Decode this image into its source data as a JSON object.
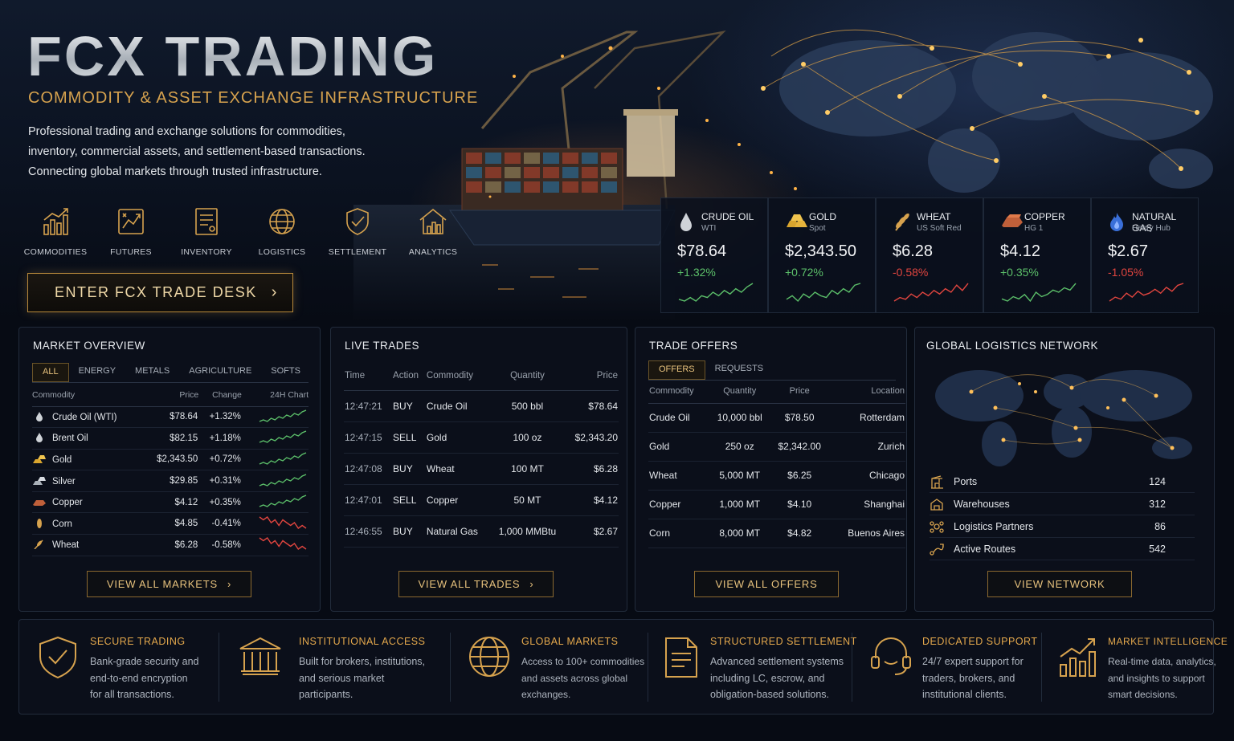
{
  "brand": {
    "title": "FCX TRADING",
    "subtitle": "COMMODITY & ASSET EXCHANGE INFRASTRUCTURE",
    "description": [
      "Professional trading and exchange solutions for commodities,",
      "inventory, commercial assets, and settlement-based transactions.",
      "Connecting global markets through trusted infrastructure."
    ]
  },
  "nav": [
    {
      "label": "COMMODITIES",
      "icon": "bar-chart-icon"
    },
    {
      "label": "FUTURES",
      "icon": "futures-chart-icon"
    },
    {
      "label": "INVENTORY",
      "icon": "document-icon"
    },
    {
      "label": "LOGISTICS",
      "icon": "globe-icon"
    },
    {
      "label": "SETTLEMENT",
      "icon": "shield-check-icon"
    },
    {
      "label": "ANALYTICS",
      "icon": "house-chart-icon"
    }
  ],
  "cta": {
    "label": "ENTER FCX TRADE DESK"
  },
  "tickers": [
    {
      "name": "CRUDE OIL",
      "sub": "WTI",
      "price": "$78.64",
      "change": "+1.32%",
      "direction": "up",
      "icon": "oil-drop-icon",
      "spark": [
        4,
        3,
        5,
        3,
        6,
        5,
        8,
        6,
        9,
        7,
        10,
        8,
        11,
        13
      ]
    },
    {
      "name": "GOLD",
      "sub": "Spot",
      "price": "$2,343.50",
      "change": "+0.72%",
      "direction": "up",
      "icon": "gold-bars-icon",
      "spark": [
        4,
        6,
        3,
        7,
        5,
        8,
        6,
        5,
        9,
        7,
        10,
        8,
        12,
        13
      ]
    },
    {
      "name": "WHEAT",
      "sub": "US Soft Red",
      "price": "$6.28",
      "change": "-0.58%",
      "direction": "down",
      "icon": "wheat-icon",
      "spark": [
        3,
        5,
        4,
        7,
        5,
        8,
        6,
        9,
        7,
        10,
        8,
        12,
        9,
        13
      ]
    },
    {
      "name": "COPPER",
      "sub": "HG 1",
      "price": "$4.12",
      "change": "+0.35%",
      "direction": "up",
      "icon": "copper-ingot-icon",
      "spark": [
        5,
        4,
        6,
        5,
        7,
        4,
        8,
        6,
        7,
        9,
        8,
        10,
        9,
        12
      ]
    },
    {
      "name": "NATURAL GAS",
      "sub": "Henry Hub",
      "price": "$2.67",
      "change": "-1.05%",
      "direction": "down",
      "icon": "flame-icon",
      "spark": [
        4,
        6,
        5,
        8,
        6,
        9,
        7,
        8,
        10,
        8,
        11,
        9,
        12,
        13
      ]
    }
  ],
  "market_overview": {
    "title": "MARKET OVERVIEW",
    "tabs": [
      "ALL",
      "ENERGY",
      "METALS",
      "AGRICULTURE",
      "SOFTS"
    ],
    "active_tab": "ALL",
    "headers": [
      "Commodity",
      "Price",
      "Change",
      "24H Chart"
    ],
    "rows": [
      {
        "name": "Crude Oil (WTI)",
        "price": "$78.64",
        "change": "+1.32%",
        "direction": "up",
        "icon": "oil-drop-icon"
      },
      {
        "name": "Brent Oil",
        "price": "$82.15",
        "change": "+1.18%",
        "direction": "up",
        "icon": "oil-drop-icon"
      },
      {
        "name": "Gold",
        "price": "$2,343.50",
        "change": "+0.72%",
        "direction": "up",
        "icon": "gold-bars-icon"
      },
      {
        "name": "Silver",
        "price": "$29.85",
        "change": "+0.31%",
        "direction": "up",
        "icon": "silver-bars-icon"
      },
      {
        "name": "Copper",
        "price": "$4.12",
        "change": "+0.35%",
        "direction": "up",
        "icon": "copper-ingot-icon"
      },
      {
        "name": "Corn",
        "price": "$4.85",
        "change": "-0.41%",
        "direction": "down",
        "icon": "corn-icon"
      },
      {
        "name": "Wheat",
        "price": "$6.28",
        "change": "-0.58%",
        "direction": "down",
        "icon": "wheat-icon"
      }
    ],
    "button": "VIEW ALL MARKETS"
  },
  "live_trades": {
    "title": "LIVE TRADES",
    "headers": [
      "Time",
      "Action",
      "Commodity",
      "Quantity",
      "Price"
    ],
    "rows": [
      {
        "time": "12:47:21",
        "action": "BUY",
        "commodity": "Crude Oil",
        "quantity": "500 bbl",
        "price": "$78.64"
      },
      {
        "time": "12:47:15",
        "action": "SELL",
        "commodity": "Gold",
        "quantity": "100 oz",
        "price": "$2,343.20"
      },
      {
        "time": "12:47:08",
        "action": "BUY",
        "commodity": "Wheat",
        "quantity": "100 MT",
        "price": "$6.28"
      },
      {
        "time": "12:47:01",
        "action": "SELL",
        "commodity": "Copper",
        "quantity": "50 MT",
        "price": "$4.12"
      },
      {
        "time": "12:46:55",
        "action": "BUY",
        "commodity": "Natural Gas",
        "quantity": "1,000 MMBtu",
        "price": "$2.67"
      }
    ],
    "button": "VIEW ALL TRADES"
  },
  "trade_offers": {
    "title": "TRADE OFFERS",
    "tabs": [
      "OFFERS",
      "REQUESTS"
    ],
    "active_tab": "OFFERS",
    "headers": [
      "Commodity",
      "Quantity",
      "Price",
      "Location"
    ],
    "rows": [
      {
        "commodity": "Crude Oil",
        "quantity": "10,000 bbl",
        "price": "$78.50",
        "location": "Rotterdam"
      },
      {
        "commodity": "Gold",
        "quantity": "250 oz",
        "price": "$2,342.00",
        "location": "Zurich"
      },
      {
        "commodity": "Wheat",
        "quantity": "5,000 MT",
        "price": "$6.25",
        "location": "Chicago"
      },
      {
        "commodity": "Copper",
        "quantity": "1,000 MT",
        "price": "$4.10",
        "location": "Shanghai"
      },
      {
        "commodity": "Corn",
        "quantity": "8,000 MT",
        "price": "$4.82",
        "location": "Buenos Aires"
      }
    ],
    "button": "VIEW ALL OFFERS"
  },
  "logistics": {
    "title": "GLOBAL LOGISTICS NETWORK",
    "stats": [
      {
        "label": "Ports",
        "value": "124",
        "icon": "port-crane-icon"
      },
      {
        "label": "Warehouses",
        "value": "312",
        "icon": "warehouse-icon"
      },
      {
        "label": "Logistics Partners",
        "value": "86",
        "icon": "partners-icon"
      },
      {
        "label": "Active Routes",
        "value": "542",
        "icon": "route-icon"
      }
    ],
    "button": "VIEW NETWORK"
  },
  "features": [
    {
      "title": "SECURE TRADING",
      "icon": "shield-check-icon",
      "lines": [
        "Bank-grade security and",
        "end-to-end encryption",
        "for all transactions."
      ]
    },
    {
      "title": "INSTITUTIONAL ACCESS",
      "icon": "bank-building-icon",
      "lines": [
        "Built for brokers, institutions,",
        "and serious market",
        "participants."
      ]
    },
    {
      "title": "GLOBAL MARKETS",
      "icon": "globe-icon",
      "lines": [
        "Access to 100+ commodities",
        "and assets across global",
        "exchanges."
      ]
    },
    {
      "title": "STRUCTURED SETTLEMENT",
      "icon": "document-icon",
      "lines": [
        "Advanced settlement systems",
        "including LC, escrow, and",
        "obligation-based solutions."
      ]
    },
    {
      "title": "DEDICATED SUPPORT",
      "icon": "headset-icon",
      "lines": [
        "24/7 expert support for",
        "traders, brokers, and",
        "institutional clients."
      ]
    },
    {
      "title": "MARKET INTELLIGENCE",
      "icon": "growth-chart-icon",
      "lines": [
        "Real-time data, analytics,",
        "and insights to support",
        "smart decisions."
      ]
    }
  ],
  "colors": {
    "accent": "#d6a24e",
    "up": "#5cc06a",
    "down": "#e0453f",
    "background": "#070b14"
  }
}
